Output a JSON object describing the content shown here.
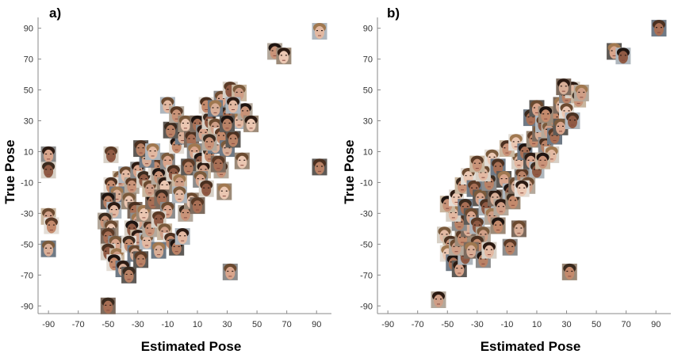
{
  "chart_data": [
    {
      "type": "scatter",
      "panel_label": "a)",
      "xlabel": "Estimated Pose",
      "ylabel": "True Pose",
      "x_ticks": [
        -90,
        -70,
        -50,
        -30,
        -10,
        10,
        30,
        50,
        70,
        90
      ],
      "y_ticks": [
        90,
        70,
        50,
        30,
        10,
        -10,
        -30,
        -50,
        -70,
        -90
      ],
      "xlim": [
        -97,
        100
      ],
      "ylim": [
        -95,
        97
      ],
      "grid": false,
      "marker": "face-thumbnail",
      "points": [
        [
          -90,
          8
        ],
        [
          -90,
          -2
        ],
        [
          -90,
          -32
        ],
        [
          -88,
          -38
        ],
        [
          -90,
          -53
        ],
        [
          92,
          0
        ],
        [
          92,
          88
        ],
        [
          62,
          75
        ],
        [
          68,
          72
        ],
        [
          -50,
          -90
        ],
        [
          32,
          -68
        ],
        [
          -48,
          8
        ],
        [
          -42,
          -8
        ],
        [
          -48,
          -12
        ],
        [
          -44,
          -18
        ],
        [
          -50,
          -22
        ],
        [
          -46,
          -28
        ],
        [
          -52,
          -35
        ],
        [
          -48,
          -40
        ],
        [
          -50,
          -45
        ],
        [
          -45,
          -50
        ],
        [
          -50,
          -55
        ],
        [
          -44,
          -58
        ],
        [
          -46,
          -62
        ],
        [
          -40,
          -66
        ],
        [
          -36,
          -70
        ],
        [
          -38,
          -5
        ],
        [
          -34,
          -12
        ],
        [
          -36,
          -22
        ],
        [
          -32,
          -28
        ],
        [
          -30,
          -35
        ],
        [
          -34,
          -40
        ],
        [
          -30,
          -46
        ],
        [
          -36,
          -50
        ],
        [
          -32,
          -56
        ],
        [
          -28,
          -60
        ],
        [
          -24,
          -48
        ],
        [
          -22,
          -40
        ],
        [
          -26,
          -30
        ],
        [
          -20,
          -22
        ],
        [
          -30,
          -2
        ],
        [
          -26,
          -8
        ],
        [
          -22,
          -14
        ],
        [
          -18,
          0
        ],
        [
          -24,
          5
        ],
        [
          -28,
          12
        ],
        [
          -20,
          10
        ],
        [
          -16,
          -6
        ],
        [
          -12,
          -12
        ],
        [
          -14,
          -20
        ],
        [
          -10,
          -28
        ],
        [
          -16,
          -34
        ],
        [
          -12,
          -42
        ],
        [
          -8,
          -48
        ],
        [
          -16,
          -54
        ],
        [
          -4,
          -52
        ],
        [
          0,
          -45
        ],
        [
          2,
          -30
        ],
        [
          6,
          -22
        ],
        [
          10,
          -25
        ],
        [
          -10,
          4
        ],
        [
          -6,
          -4
        ],
        [
          -2,
          -10
        ],
        [
          -4,
          14
        ],
        [
          0,
          20
        ],
        [
          -8,
          24
        ],
        [
          -10,
          40
        ],
        [
          -4,
          34
        ],
        [
          2,
          28
        ],
        [
          6,
          18
        ],
        [
          8,
          10
        ],
        [
          12,
          4
        ],
        [
          14,
          -2
        ],
        [
          18,
          8
        ],
        [
          22,
          14
        ],
        [
          4,
          0
        ],
        [
          -2,
          -18
        ],
        [
          26,
          -2
        ],
        [
          28,
          -16
        ],
        [
          10,
          28
        ],
        [
          14,
          22
        ],
        [
          18,
          30
        ],
        [
          22,
          26
        ],
        [
          26,
          20
        ],
        [
          30,
          12
        ],
        [
          34,
          18
        ],
        [
          38,
          30
        ],
        [
          42,
          36
        ],
        [
          46,
          28
        ],
        [
          30,
          34
        ],
        [
          26,
          44
        ],
        [
          32,
          50
        ],
        [
          38,
          48
        ],
        [
          16,
          40
        ],
        [
          22,
          38
        ],
        [
          30,
          28
        ],
        [
          34,
          40
        ],
        [
          18,
          16
        ],
        [
          40,
          4
        ],
        [
          24,
          2
        ],
        [
          12,
          -8
        ],
        [
          16,
          -14
        ]
      ]
    },
    {
      "type": "scatter",
      "panel_label": "b)",
      "xlabel": "Estimated Pose",
      "ylabel": "True Pose",
      "x_ticks": [
        -90,
        -70,
        -50,
        -30,
        -10,
        10,
        30,
        50,
        70,
        90
      ],
      "y_ticks": [
        90,
        70,
        50,
        30,
        10,
        -10,
        -30,
        -50,
        -70,
        -90
      ],
      "xlim": [
        -97,
        100
      ],
      "ylim": [
        -95,
        97
      ],
      "grid": false,
      "marker": "face-thumbnail",
      "points": [
        [
          92,
          90
        ],
        [
          62,
          75
        ],
        [
          68,
          72
        ],
        [
          -56,
          -86
        ],
        [
          32,
          -68
        ],
        [
          -2,
          -40
        ],
        [
          -8,
          -52
        ],
        [
          -52,
          -44
        ],
        [
          -48,
          -50
        ],
        [
          -50,
          -56
        ],
        [
          -46,
          -62
        ],
        [
          -42,
          -66
        ],
        [
          -38,
          -58
        ],
        [
          -44,
          -52
        ],
        [
          -40,
          -46
        ],
        [
          -36,
          -40
        ],
        [
          -42,
          -36
        ],
        [
          -46,
          -30
        ],
        [
          -50,
          -24
        ],
        [
          -44,
          -20
        ],
        [
          -38,
          -26
        ],
        [
          -34,
          -32
        ],
        [
          -30,
          -38
        ],
        [
          -26,
          -44
        ],
        [
          -30,
          -50
        ],
        [
          -34,
          -54
        ],
        [
          -26,
          -60
        ],
        [
          -22,
          -54
        ],
        [
          -40,
          -12
        ],
        [
          -36,
          -6
        ],
        [
          -32,
          -14
        ],
        [
          -28,
          -20
        ],
        [
          -24,
          -26
        ],
        [
          -20,
          -32
        ],
        [
          -16,
          -38
        ],
        [
          -18,
          -20
        ],
        [
          -22,
          -10
        ],
        [
          -26,
          -4
        ],
        [
          -30,
          2
        ],
        [
          -20,
          6
        ],
        [
          -16,
          0
        ],
        [
          -12,
          -8
        ],
        [
          -8,
          -16
        ],
        [
          -14,
          -26
        ],
        [
          -6,
          -22
        ],
        [
          -4,
          -12
        ],
        [
          0,
          -6
        ],
        [
          -2,
          4
        ],
        [
          -10,
          12
        ],
        [
          -4,
          16
        ],
        [
          2,
          10
        ],
        [
          6,
          4
        ],
        [
          10,
          -2
        ],
        [
          4,
          -12
        ],
        [
          8,
          18
        ],
        [
          12,
          22
        ],
        [
          16,
          14
        ],
        [
          20,
          8
        ],
        [
          14,
          4
        ],
        [
          0,
          -14
        ],
        [
          6,
          32
        ],
        [
          10,
          38
        ],
        [
          14,
          28
        ],
        [
          18,
          24
        ],
        [
          22,
          32
        ],
        [
          26,
          40
        ],
        [
          30,
          46
        ],
        [
          34,
          50
        ],
        [
          38,
          44
        ],
        [
          30,
          36
        ],
        [
          22,
          20
        ],
        [
          26,
          26
        ],
        [
          34,
          30
        ],
        [
          40,
          48
        ],
        [
          16,
          34
        ],
        [
          28,
          52
        ]
      ]
    }
  ]
}
